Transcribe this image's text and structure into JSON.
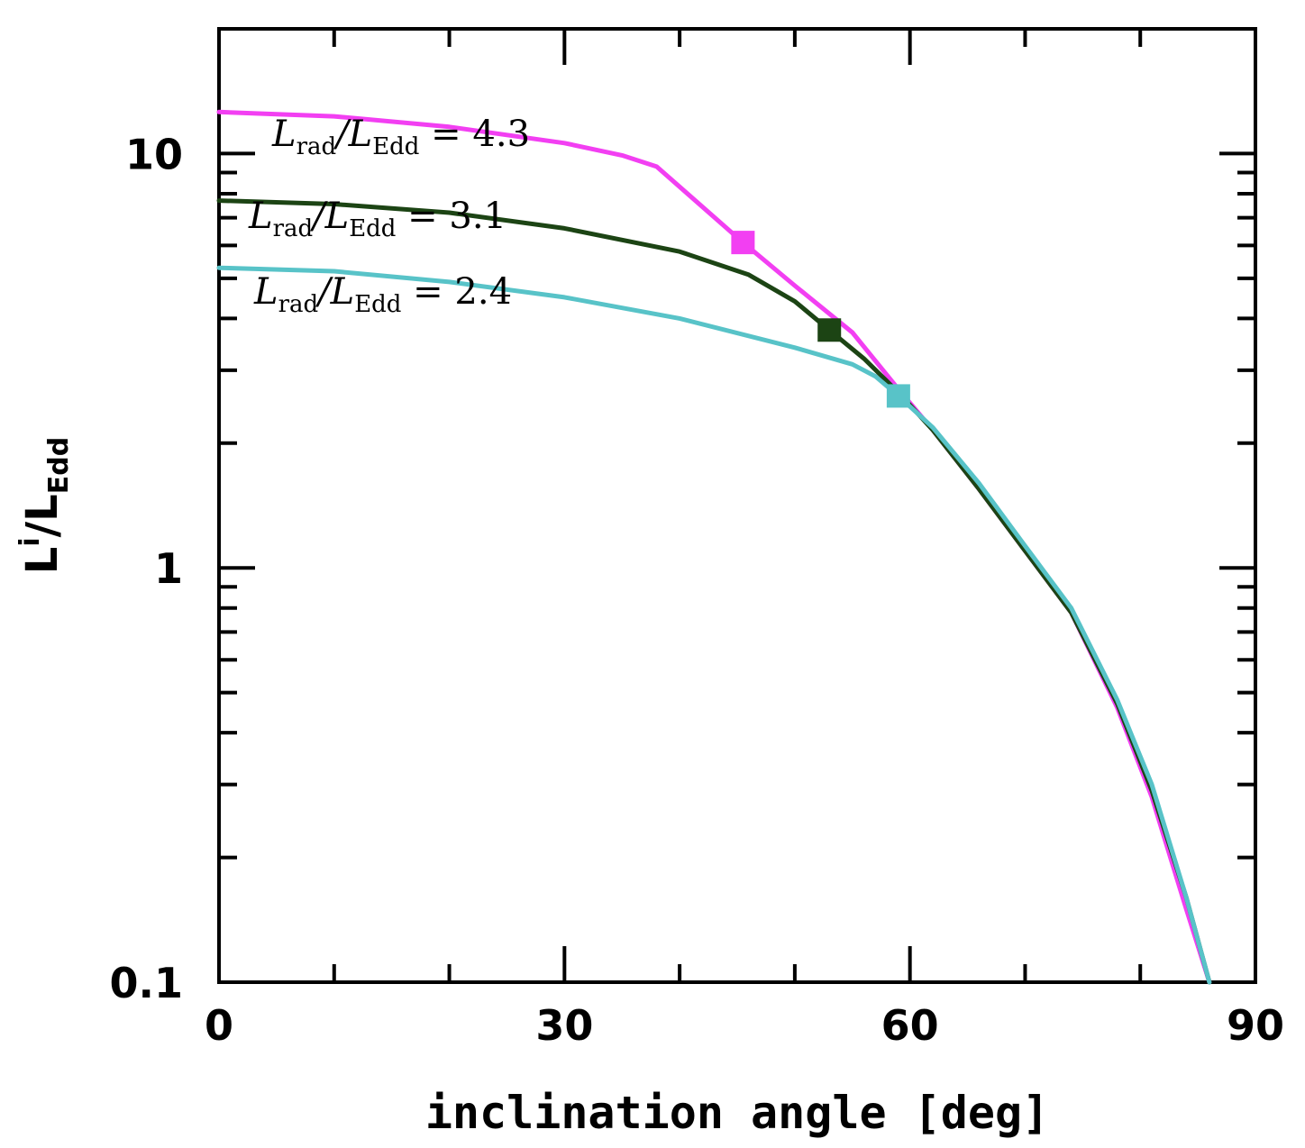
{
  "chart_data": {
    "type": "line",
    "title": "",
    "xlabel": "inclination angle [deg]",
    "ylabel": {
      "main": "L",
      "sup": "i",
      "sep": "/",
      "main2": "L",
      "sub": "Edd"
    },
    "xlim": [
      0,
      90
    ],
    "ylim": [
      0.1,
      20
    ],
    "yscale": "log",
    "grid": false,
    "x_ticks": [
      {
        "value": 0,
        "label": "0"
      },
      {
        "value": 30,
        "label": "30"
      },
      {
        "value": 60,
        "label": "60"
      },
      {
        "value": 90,
        "label": "90"
      }
    ],
    "x_minor_ticks": [
      10,
      20,
      40,
      50,
      70,
      80
    ],
    "y_ticks": [
      {
        "value": 0.1,
        "label": "0.1"
      },
      {
        "value": 1,
        "label": "1"
      },
      {
        "value": 10,
        "label": "10"
      }
    ],
    "y_minor_ticks": [
      0.2,
      0.3,
      0.4,
      0.5,
      0.6,
      0.7,
      0.8,
      0.9,
      2,
      3,
      4,
      5,
      6,
      7,
      8,
      9,
      20
    ],
    "series": [
      {
        "name": "L_rad/L_Edd = 4.3",
        "color": "#f23ff2",
        "x": [
          0,
          10,
          20,
          30,
          35,
          38,
          45.5,
          50,
          55,
          59,
          62,
          66,
          70,
          74,
          78,
          81,
          84,
          86
        ],
        "y": [
          12.6,
          12.3,
          11.6,
          10.6,
          9.9,
          9.3,
          6.1,
          4.8,
          3.7,
          2.7,
          2.15,
          1.55,
          1.1,
          0.78,
          0.46,
          0.28,
          0.15,
          0.1
        ],
        "marker": {
          "x": 45.5,
          "y": 6.1
        }
      },
      {
        "name": "L_rad/L_Edd = 3.1",
        "color": "#1c4414",
        "x": [
          0,
          10,
          20,
          30,
          40,
          46,
          50,
          53,
          56,
          59,
          62,
          66,
          70,
          74,
          78,
          81,
          84,
          86
        ],
        "y": [
          7.7,
          7.55,
          7.2,
          6.6,
          5.8,
          5.1,
          4.4,
          3.75,
          3.2,
          2.65,
          2.15,
          1.55,
          1.1,
          0.78,
          0.47,
          0.29,
          0.16,
          0.1
        ],
        "marker": {
          "x": 53,
          "y": 3.75
        }
      },
      {
        "name": "L_rad/L_Edd = 2.4",
        "color": "#58c3c8",
        "x": [
          0,
          10,
          20,
          30,
          40,
          50,
          55,
          57,
          59,
          62,
          66,
          70,
          74,
          78,
          81,
          84,
          86
        ],
        "y": [
          5.3,
          5.2,
          4.9,
          4.5,
          4.0,
          3.4,
          3.1,
          2.9,
          2.6,
          2.18,
          1.6,
          1.13,
          0.8,
          0.48,
          0.3,
          0.16,
          0.1
        ],
        "marker": {
          "x": 59,
          "y": 2.6
        }
      }
    ],
    "annotations": [
      {
        "series": 0,
        "prefix": "L",
        "sub1": "rad",
        "slash": "/L",
        "sub2": "Edd",
        "value": " = 4.3"
      },
      {
        "series": 1,
        "prefix": "L",
        "sub1": "rad",
        "slash": "/L",
        "sub2": "Edd",
        "value": " = 3.1"
      },
      {
        "series": 2,
        "prefix": "L",
        "sub1": "rad",
        "slash": "/L",
        "sub2": "Edd",
        "value": " = 2.4"
      }
    ]
  }
}
